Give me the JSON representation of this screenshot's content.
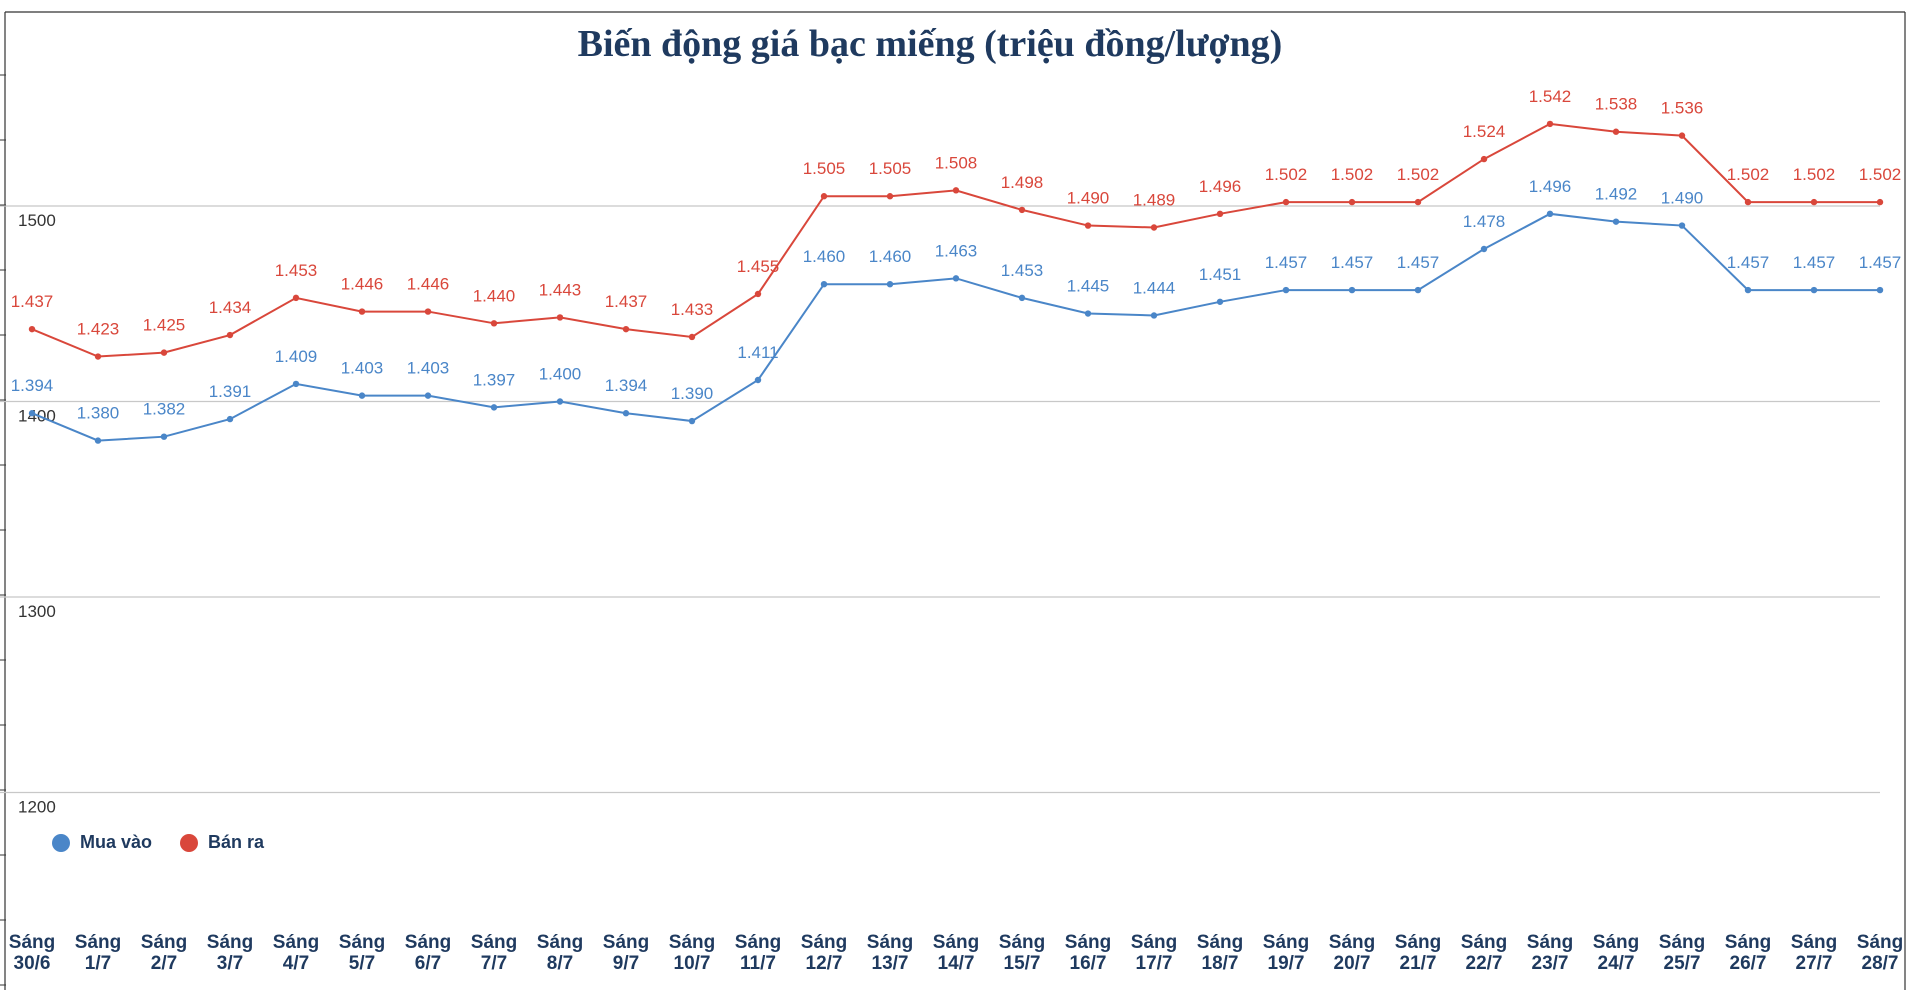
{
  "chart_data": {
    "type": "line",
    "title": "Biến động giá bạc miếng (triệu đồng/lượng)",
    "xlabel": "",
    "ylabel": "",
    "ylim": [
      1150,
      1550
    ],
    "yticks": [
      1200,
      1300,
      1400,
      1500
    ],
    "grid": true,
    "legend_position": "bottom-left",
    "categories": [
      [
        "Sáng",
        "30/6"
      ],
      [
        "Sáng",
        "1/7"
      ],
      [
        "Sáng",
        "2/7"
      ],
      [
        "Sáng",
        "3/7"
      ],
      [
        "Sáng",
        "4/7"
      ],
      [
        "Sáng",
        "5/7"
      ],
      [
        "Sáng",
        "6/7"
      ],
      [
        "Sáng",
        "7/7"
      ],
      [
        "Sáng",
        "8/7"
      ],
      [
        "Sáng",
        "9/7"
      ],
      [
        "Sáng",
        "10/7"
      ],
      [
        "Sáng",
        "11/7"
      ],
      [
        "Sáng",
        "12/7"
      ],
      [
        "Sáng",
        "13/7"
      ],
      [
        "Sáng",
        "14/7"
      ],
      [
        "Sáng",
        "15/7"
      ],
      [
        "Sáng",
        "16/7"
      ],
      [
        "Sáng",
        "17/7"
      ],
      [
        "Sáng",
        "18/7"
      ],
      [
        "Sáng",
        "19/7"
      ],
      [
        "Sáng",
        "20/7"
      ],
      [
        "Sáng",
        "21/7"
      ],
      [
        "Sáng",
        "22/7"
      ],
      [
        "Sáng",
        "23/7"
      ],
      [
        "Sáng",
        "24/7"
      ],
      [
        "Sáng",
        "25/7"
      ],
      [
        "Sáng",
        "26/7"
      ],
      [
        "Sáng",
        "27/7"
      ],
      [
        "Sáng",
        "28/7"
      ]
    ],
    "series": [
      {
        "name": "Mua vào",
        "color": "#4a86c8",
        "values": [
          1394,
          1380,
          1382,
          1391,
          1409,
          1403,
          1403,
          1397,
          1400,
          1394,
          1390,
          1411,
          1460,
          1460,
          1463,
          1453,
          1445,
          1444,
          1451,
          1457,
          1457,
          1457,
          1478,
          1496,
          1492,
          1490,
          1457,
          1457,
          1457
        ],
        "labels": [
          "1.394",
          "1.380",
          "1.382",
          "1.391",
          "1.409",
          "1.403",
          "1.403",
          "1.397",
          "1.400",
          "1.394",
          "1.390",
          "1.411",
          "1.460",
          "1.460",
          "1.463",
          "1.453",
          "1.445",
          "1.444",
          "1.451",
          "1.457",
          "1.457",
          "1.457",
          "1.478",
          "1.496",
          "1.492",
          "1.490",
          "1.457",
          "1.457",
          "1.457"
        ]
      },
      {
        "name": "Bán ra",
        "color": "#d9473b",
        "values": [
          1437,
          1423,
          1425,
          1434,
          1453,
          1446,
          1446,
          1440,
          1443,
          1437,
          1433,
          1455,
          1505,
          1505,
          1508,
          1498,
          1490,
          1489,
          1496,
          1502,
          1502,
          1502,
          1524,
          1542,
          1538,
          1536,
          1502,
          1502,
          1502
        ],
        "labels": [
          "1.437",
          "1.423",
          "1.425",
          "1.434",
          "1.453",
          "1.446",
          "1.446",
          "1.440",
          "1.443",
          "1.437",
          "1.433",
          "1.455",
          "1.505",
          "1.505",
          "1.508",
          "1.498",
          "1.490",
          "1.489",
          "1.496",
          "1.502",
          "1.502",
          "1.502",
          "1.524",
          "1.542",
          "1.538",
          "1.536",
          "1.502",
          "1.502",
          "1.502"
        ]
      }
    ]
  },
  "legend": {
    "buy_label": "Mua vào",
    "sell_label": "Bán ra"
  }
}
